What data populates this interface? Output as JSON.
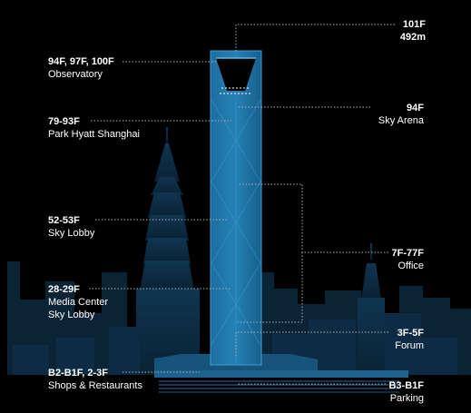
{
  "colors": {
    "background": "#000000",
    "skyline": "#0c2a40",
    "skyline_far": "#08202f",
    "tower": "#1a6fa0",
    "tower_edge": "#3aa0d8",
    "leader": "#9aa7b0",
    "text": "#ffffff"
  },
  "labels": {
    "top": {
      "title": "101F",
      "subtitle": "492m"
    },
    "observatory": {
      "title": "94F, 97F, 100F",
      "subtitle": "Observatory"
    },
    "sky_arena": {
      "title": "94F",
      "subtitle": "Sky Arena"
    },
    "park_hyatt": {
      "title": "79-93F",
      "subtitle": "Park Hyatt Shanghai"
    },
    "sky_lobby": {
      "title": "52-53F",
      "subtitle": "Sky Lobby"
    },
    "office": {
      "title": "7F-77F",
      "subtitle": "Office"
    },
    "media": {
      "title": "28-29F",
      "subtitle": "Media Center",
      "subtitle2": "Sky Lobby"
    },
    "forum": {
      "title": "3F-5F",
      "subtitle": "Forum"
    },
    "shops": {
      "title": "B2-B1F, 2-3F",
      "subtitle": "Shops & Restaurants"
    },
    "parking": {
      "title": "B3-B1F",
      "subtitle": "Parking"
    }
  }
}
